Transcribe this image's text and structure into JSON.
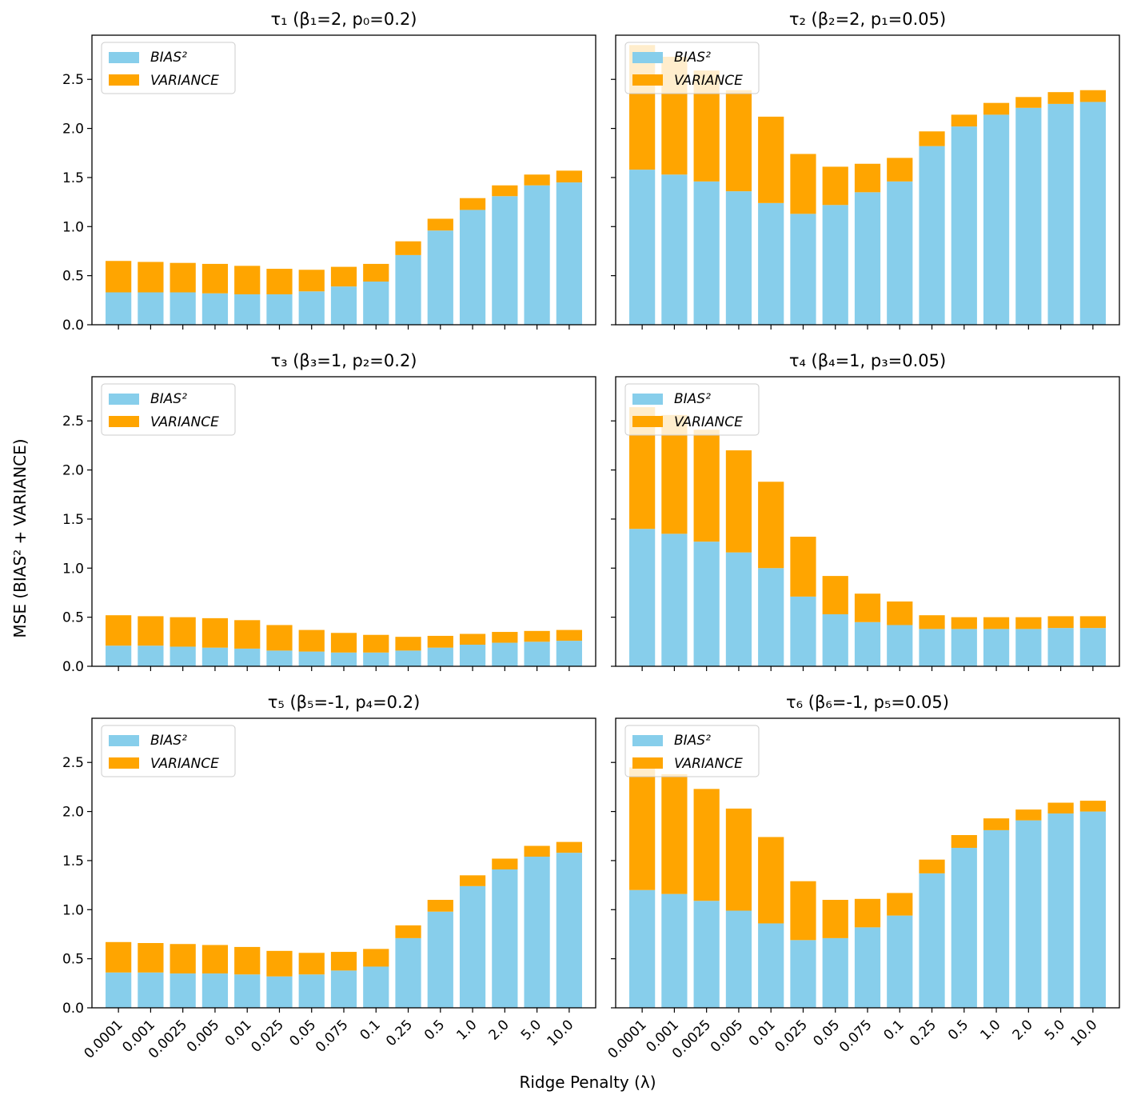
{
  "figure": {
    "ylabel": "MSE (BIAS² + VARIANCE)",
    "xlabel": "Ridge Penalty (λ)"
  },
  "colors": {
    "bias": "#87ceeb",
    "variance": "#ffa500"
  },
  "legend": {
    "bias_label": "BIAS²",
    "variance_label": "VARIANCE",
    "placement": "top-left"
  },
  "chart_data": [
    {
      "type": "bar",
      "stacked": true,
      "title": "τ₁ (β₁=2, p₀=0.2)",
      "categories": [
        "0.0001",
        "0.001",
        "0.0025",
        "0.005",
        "0.01",
        "0.025",
        "0.05",
        "0.075",
        "0.1",
        "0.25",
        "0.5",
        "1.0",
        "2.0",
        "5.0",
        "10.0"
      ],
      "series": [
        {
          "name": "BIAS²",
          "values": [
            0.33,
            0.33,
            0.33,
            0.32,
            0.31,
            0.31,
            0.34,
            0.39,
            0.44,
            0.71,
            0.96,
            1.17,
            1.31,
            1.42,
            1.45
          ]
        },
        {
          "name": "VARIANCE",
          "values": [
            0.32,
            0.31,
            0.3,
            0.3,
            0.29,
            0.26,
            0.22,
            0.2,
            0.18,
            0.14,
            0.12,
            0.12,
            0.11,
            0.11,
            0.12
          ]
        }
      ],
      "ylim": [
        0,
        2.95
      ],
      "yticks": [
        "0.0",
        "0.5",
        "1.0",
        "1.5",
        "2.0",
        "2.5"
      ]
    },
    {
      "type": "bar",
      "stacked": true,
      "title": "τ₂ (β₂=2, p₁=0.05)",
      "categories": [
        "0.0001",
        "0.001",
        "0.0025",
        "0.005",
        "0.01",
        "0.025",
        "0.05",
        "0.075",
        "0.1",
        "0.25",
        "0.5",
        "1.0",
        "2.0",
        "5.0",
        "10.0"
      ],
      "series": [
        {
          "name": "BIAS²",
          "values": [
            1.58,
            1.53,
            1.46,
            1.36,
            1.24,
            1.13,
            1.22,
            1.35,
            1.46,
            1.82,
            2.02,
            2.14,
            2.21,
            2.25,
            2.27
          ]
        },
        {
          "name": "VARIANCE",
          "values": [
            1.27,
            1.2,
            1.13,
            1.03,
            0.88,
            0.61,
            0.39,
            0.29,
            0.24,
            0.15,
            0.12,
            0.12,
            0.11,
            0.12,
            0.12
          ]
        }
      ],
      "ylim": [
        0,
        2.95
      ],
      "yticks": [
        "0.0",
        "0.5",
        "1.0",
        "1.5",
        "2.0",
        "2.5"
      ]
    },
    {
      "type": "bar",
      "stacked": true,
      "title": "τ₃ (β₃=1, p₂=0.2)",
      "categories": [
        "0.0001",
        "0.001",
        "0.0025",
        "0.005",
        "0.01",
        "0.025",
        "0.05",
        "0.075",
        "0.1",
        "0.25",
        "0.5",
        "1.0",
        "2.0",
        "5.0",
        "10.0"
      ],
      "series": [
        {
          "name": "BIAS²",
          "values": [
            0.21,
            0.21,
            0.2,
            0.19,
            0.18,
            0.16,
            0.15,
            0.14,
            0.14,
            0.16,
            0.19,
            0.22,
            0.24,
            0.25,
            0.26
          ]
        },
        {
          "name": "VARIANCE",
          "values": [
            0.31,
            0.3,
            0.3,
            0.3,
            0.29,
            0.26,
            0.22,
            0.2,
            0.18,
            0.14,
            0.12,
            0.11,
            0.11,
            0.11,
            0.11
          ]
        }
      ],
      "ylim": [
        0,
        2.95
      ],
      "yticks": [
        "0.0",
        "0.5",
        "1.0",
        "1.5",
        "2.0",
        "2.5"
      ]
    },
    {
      "type": "bar",
      "stacked": true,
      "title": "τ₄ (β₄=1, p₃=0.05)",
      "categories": [
        "0.0001",
        "0.001",
        "0.0025",
        "0.005",
        "0.01",
        "0.025",
        "0.05",
        "0.075",
        "0.1",
        "0.25",
        "0.5",
        "1.0",
        "2.0",
        "5.0",
        "10.0"
      ],
      "series": [
        {
          "name": "BIAS²",
          "values": [
            1.4,
            1.35,
            1.27,
            1.16,
            1.0,
            0.71,
            0.53,
            0.45,
            0.42,
            0.38,
            0.38,
            0.38,
            0.38,
            0.39,
            0.39
          ]
        },
        {
          "name": "VARIANCE",
          "values": [
            1.24,
            1.21,
            1.14,
            1.04,
            0.88,
            0.61,
            0.39,
            0.29,
            0.24,
            0.14,
            0.12,
            0.12,
            0.12,
            0.12,
            0.12
          ]
        }
      ],
      "ylim": [
        0,
        2.95
      ],
      "yticks": [
        "0.0",
        "0.5",
        "1.0",
        "1.5",
        "2.0",
        "2.5"
      ]
    },
    {
      "type": "bar",
      "stacked": true,
      "title": "τ₅ (β₅=-1, p₄=0.2)",
      "categories": [
        "0.0001",
        "0.001",
        "0.0025",
        "0.005",
        "0.01",
        "0.025",
        "0.05",
        "0.075",
        "0.1",
        "0.25",
        "0.5",
        "1.0",
        "2.0",
        "5.0",
        "10.0"
      ],
      "series": [
        {
          "name": "BIAS²",
          "values": [
            0.36,
            0.36,
            0.35,
            0.35,
            0.34,
            0.32,
            0.34,
            0.38,
            0.42,
            0.71,
            0.98,
            1.24,
            1.41,
            1.54,
            1.58
          ]
        },
        {
          "name": "VARIANCE",
          "values": [
            0.31,
            0.3,
            0.3,
            0.29,
            0.28,
            0.26,
            0.22,
            0.19,
            0.18,
            0.13,
            0.12,
            0.11,
            0.11,
            0.11,
            0.11
          ]
        }
      ],
      "ylim": [
        0,
        2.95
      ],
      "yticks": [
        "0.0",
        "0.5",
        "1.0",
        "1.5",
        "2.0",
        "2.5"
      ]
    },
    {
      "type": "bar",
      "stacked": true,
      "title": "τ₆ (β₆=-1, p₅=0.05)",
      "categories": [
        "0.0001",
        "0.001",
        "0.0025",
        "0.005",
        "0.01",
        "0.025",
        "0.05",
        "0.075",
        "0.1",
        "0.25",
        "0.5",
        "1.0",
        "2.0",
        "5.0",
        "10.0"
      ],
      "series": [
        {
          "name": "BIAS²",
          "values": [
            1.2,
            1.16,
            1.09,
            0.99,
            0.86,
            0.69,
            0.71,
            0.82,
            0.94,
            1.37,
            1.63,
            1.81,
            1.91,
            1.98,
            2.0
          ]
        },
        {
          "name": "VARIANCE",
          "values": [
            1.25,
            1.22,
            1.14,
            1.04,
            0.88,
            0.6,
            0.39,
            0.29,
            0.23,
            0.14,
            0.13,
            0.12,
            0.11,
            0.11,
            0.11
          ]
        }
      ],
      "ylim": [
        0,
        2.95
      ],
      "yticks": [
        "0.0",
        "0.5",
        "1.0",
        "1.5",
        "2.0",
        "2.5"
      ]
    }
  ]
}
